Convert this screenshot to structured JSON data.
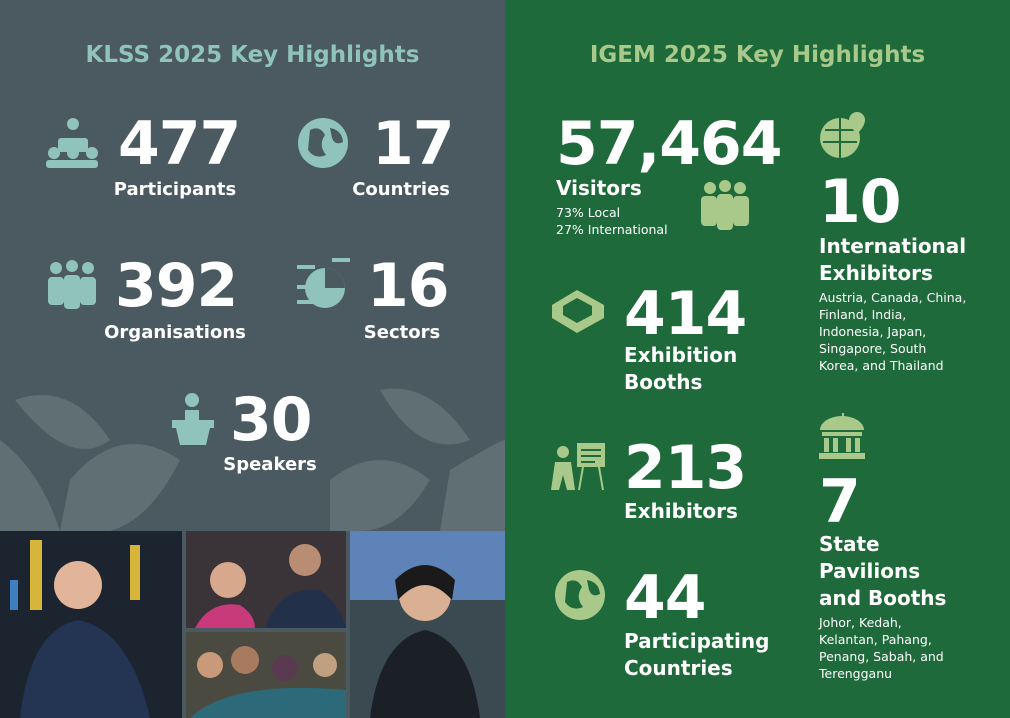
{
  "klss": {
    "title": "KLSS 2025 Key Highlights",
    "stats": [
      {
        "value": "477",
        "label": "Participants"
      },
      {
        "value": "17",
        "label": "Countries"
      },
      {
        "value": "392",
        "label": "Organisations"
      },
      {
        "value": "16",
        "label": "Sectors"
      },
      {
        "value": "30",
        "label": "Speakers"
      }
    ]
  },
  "igem": {
    "title": "IGEM 2025 Key Highlights",
    "stats": [
      {
        "value": "57,464",
        "label": "Visitors",
        "notes": [
          "73% Local",
          "27% International"
        ]
      },
      {
        "value": "10",
        "label": "International Exhibitors",
        "note": "Austria, Canada, China, Finland, India, Indonesia, Japan, Singapore, South Korea, and Thailand"
      },
      {
        "value": "414",
        "label": "Exhibition Booths"
      },
      {
        "value": "213",
        "label": "Exhibitors"
      },
      {
        "value": "7",
        "label": "State Pavilions and Booths",
        "note": "Johor, Kedah, Kelantan, Pahang, Penang, Sabah, and Terengganu"
      },
      {
        "value": "44",
        "label": "Participating Countries"
      }
    ]
  }
}
